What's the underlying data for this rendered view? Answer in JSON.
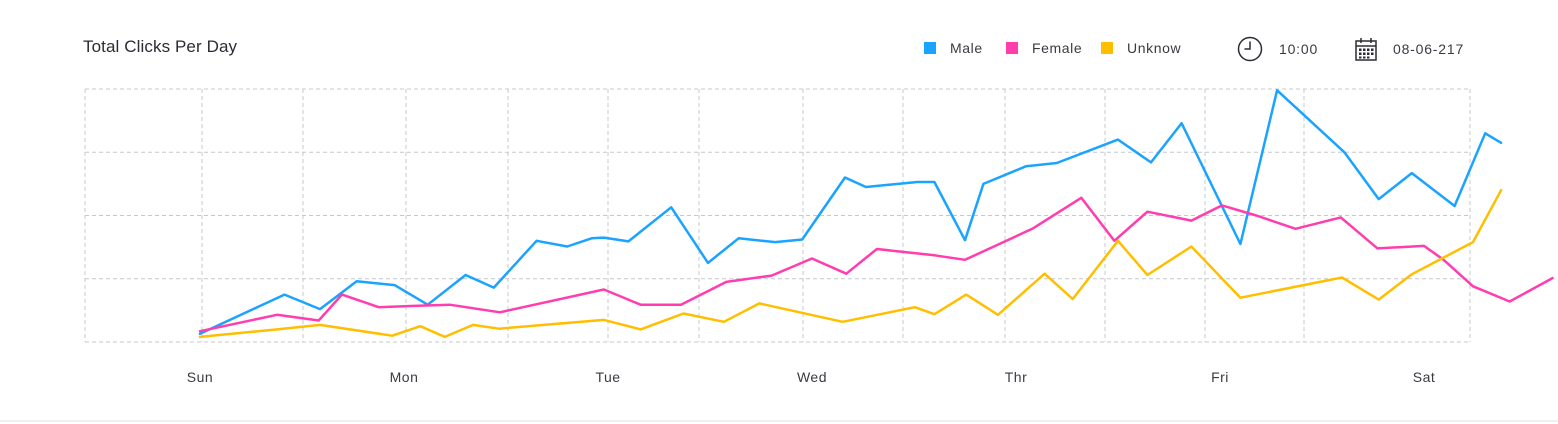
{
  "chart_data": {
    "type": "line",
    "title": "Total Clicks Per Day",
    "xlabel": "",
    "ylabel": "",
    "grid": true,
    "legend_placement": "top-right",
    "categories": [
      "Sun",
      "Mon",
      "Tue",
      "Wed",
      "Thr",
      "Fri",
      "Sat"
    ],
    "ylim": [
      0,
      4
    ],
    "series": [
      {
        "name": "Male",
        "color": "#1aa3ff",
        "points": [
          [
            0.0,
            0.13
          ],
          [
            0.069,
            0.75
          ],
          [
            0.098,
            0.52
          ],
          [
            0.128,
            0.96
          ],
          [
            0.159,
            0.9
          ],
          [
            0.186,
            0.59
          ],
          [
            0.217,
            1.06
          ],
          [
            0.24,
            0.86
          ],
          [
            0.275,
            1.6
          ],
          [
            0.3,
            1.51
          ],
          [
            0.32,
            1.64
          ],
          [
            0.33,
            1.65
          ],
          [
            0.35,
            1.59
          ],
          [
            0.385,
            2.13
          ],
          [
            0.415,
            1.25
          ],
          [
            0.44,
            1.64
          ],
          [
            0.47,
            1.58
          ],
          [
            0.492,
            1.62
          ],
          [
            0.527,
            2.6
          ],
          [
            0.544,
            2.45
          ],
          [
            0.586,
            2.53
          ],
          [
            0.6,
            2.53
          ],
          [
            0.625,
            1.61
          ],
          [
            0.64,
            2.5
          ],
          [
            0.675,
            2.78
          ],
          [
            0.7,
            2.83
          ],
          [
            0.75,
            3.2
          ],
          [
            0.777,
            2.84
          ],
          [
            0.802,
            3.46
          ],
          [
            0.85,
            1.55
          ],
          [
            0.88,
            3.98
          ],
          [
            0.935,
            3.0
          ],
          [
            0.963,
            2.26
          ],
          [
            0.99,
            2.67
          ],
          [
            1.025,
            2.15
          ],
          [
            1.05,
            3.3
          ],
          [
            1.063,
            3.15
          ]
        ]
      },
      {
        "name": "Female",
        "color": "#ff3dae",
        "points": [
          [
            0.0,
            0.17
          ],
          [
            0.063,
            0.43
          ],
          [
            0.097,
            0.34
          ],
          [
            0.116,
            0.75
          ],
          [
            0.146,
            0.55
          ],
          [
            0.175,
            0.57
          ],
          [
            0.204,
            0.59
          ],
          [
            0.245,
            0.47
          ],
          [
            0.33,
            0.83
          ],
          [
            0.36,
            0.59
          ],
          [
            0.393,
            0.59
          ],
          [
            0.43,
            0.95
          ],
          [
            0.467,
            1.05
          ],
          [
            0.5,
            1.32
          ],
          [
            0.528,
            1.08
          ],
          [
            0.553,
            1.47
          ],
          [
            0.6,
            1.37
          ],
          [
            0.625,
            1.3
          ],
          [
            0.68,
            1.79
          ],
          [
            0.72,
            2.28
          ],
          [
            0.747,
            1.6
          ],
          [
            0.774,
            2.06
          ],
          [
            0.81,
            1.92
          ],
          [
            0.835,
            2.16
          ],
          [
            0.863,
            2.0
          ],
          [
            0.895,
            1.79
          ],
          [
            0.932,
            1.97
          ],
          [
            0.962,
            1.48
          ],
          [
            1.0,
            1.52
          ],
          [
            1.016,
            1.3
          ],
          [
            1.04,
            0.88
          ],
          [
            1.07,
            0.64
          ],
          [
            1.105,
            1.01
          ]
        ]
      },
      {
        "name": "Unknow",
        "color": "#ffbf00",
        "points": [
          [
            0.0,
            0.08
          ],
          [
            0.063,
            0.2
          ],
          [
            0.098,
            0.27
          ],
          [
            0.157,
            0.1
          ],
          [
            0.18,
            0.25
          ],
          [
            0.2,
            0.08
          ],
          [
            0.223,
            0.27
          ],
          [
            0.244,
            0.21
          ],
          [
            0.33,
            0.35
          ],
          [
            0.36,
            0.2
          ],
          [
            0.395,
            0.45
          ],
          [
            0.428,
            0.32
          ],
          [
            0.457,
            0.61
          ],
          [
            0.525,
            0.32
          ],
          [
            0.584,
            0.55
          ],
          [
            0.6,
            0.44
          ],
          [
            0.626,
            0.75
          ],
          [
            0.652,
            0.43
          ],
          [
            0.69,
            1.08
          ],
          [
            0.713,
            0.68
          ],
          [
            0.75,
            1.6
          ],
          [
            0.774,
            1.06
          ],
          [
            0.81,
            1.51
          ],
          [
            0.85,
            0.7
          ],
          [
            0.933,
            1.02
          ],
          [
            0.963,
            0.67
          ],
          [
            0.99,
            1.07
          ],
          [
            1.04,
            1.58
          ],
          [
            1.063,
            2.4
          ]
        ]
      }
    ]
  },
  "header": {
    "time": "10:00",
    "date": "08-06-217",
    "clock_icon": "clock-icon",
    "calendar_icon": "calendar-icon"
  }
}
